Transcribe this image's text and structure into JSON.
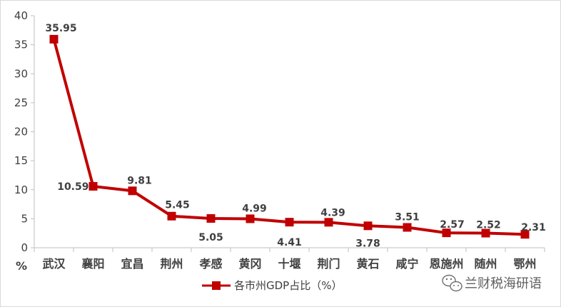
{
  "chart_data": {
    "type": "line",
    "categories": [
      "武汉",
      "襄阳",
      "宜昌",
      "荆州",
      "孝感",
      "黄冈",
      "十堰",
      "荆门",
      "黄石",
      "咸宁",
      "恩施州",
      "随州",
      "鄂州"
    ],
    "series": [
      {
        "name": "各市州GDP占比（%）",
        "values": [
          35.95,
          10.59,
          9.81,
          5.45,
          5.05,
          4.99,
          4.41,
          4.39,
          3.78,
          3.51,
          2.57,
          2.52,
          2.31
        ],
        "labels": [
          "35.95",
          "10.59",
          "9.81",
          "5.45",
          "5.05",
          "4.99",
          "4.41",
          "4.39",
          "3.78",
          "3.51",
          "2.57",
          "2.52",
          "2.31"
        ],
        "color": "#c00000"
      }
    ],
    "ylim": [
      0,
      40
    ],
    "yticks": [
      "0",
      "5",
      "10",
      "15",
      "20",
      "25",
      "30",
      "35",
      "40"
    ],
    "y_unit": "%",
    "grid": false,
    "legend_position": "bottom-center"
  },
  "watermark": {
    "text": "兰财税海研语",
    "icon": "wechat-icon"
  }
}
